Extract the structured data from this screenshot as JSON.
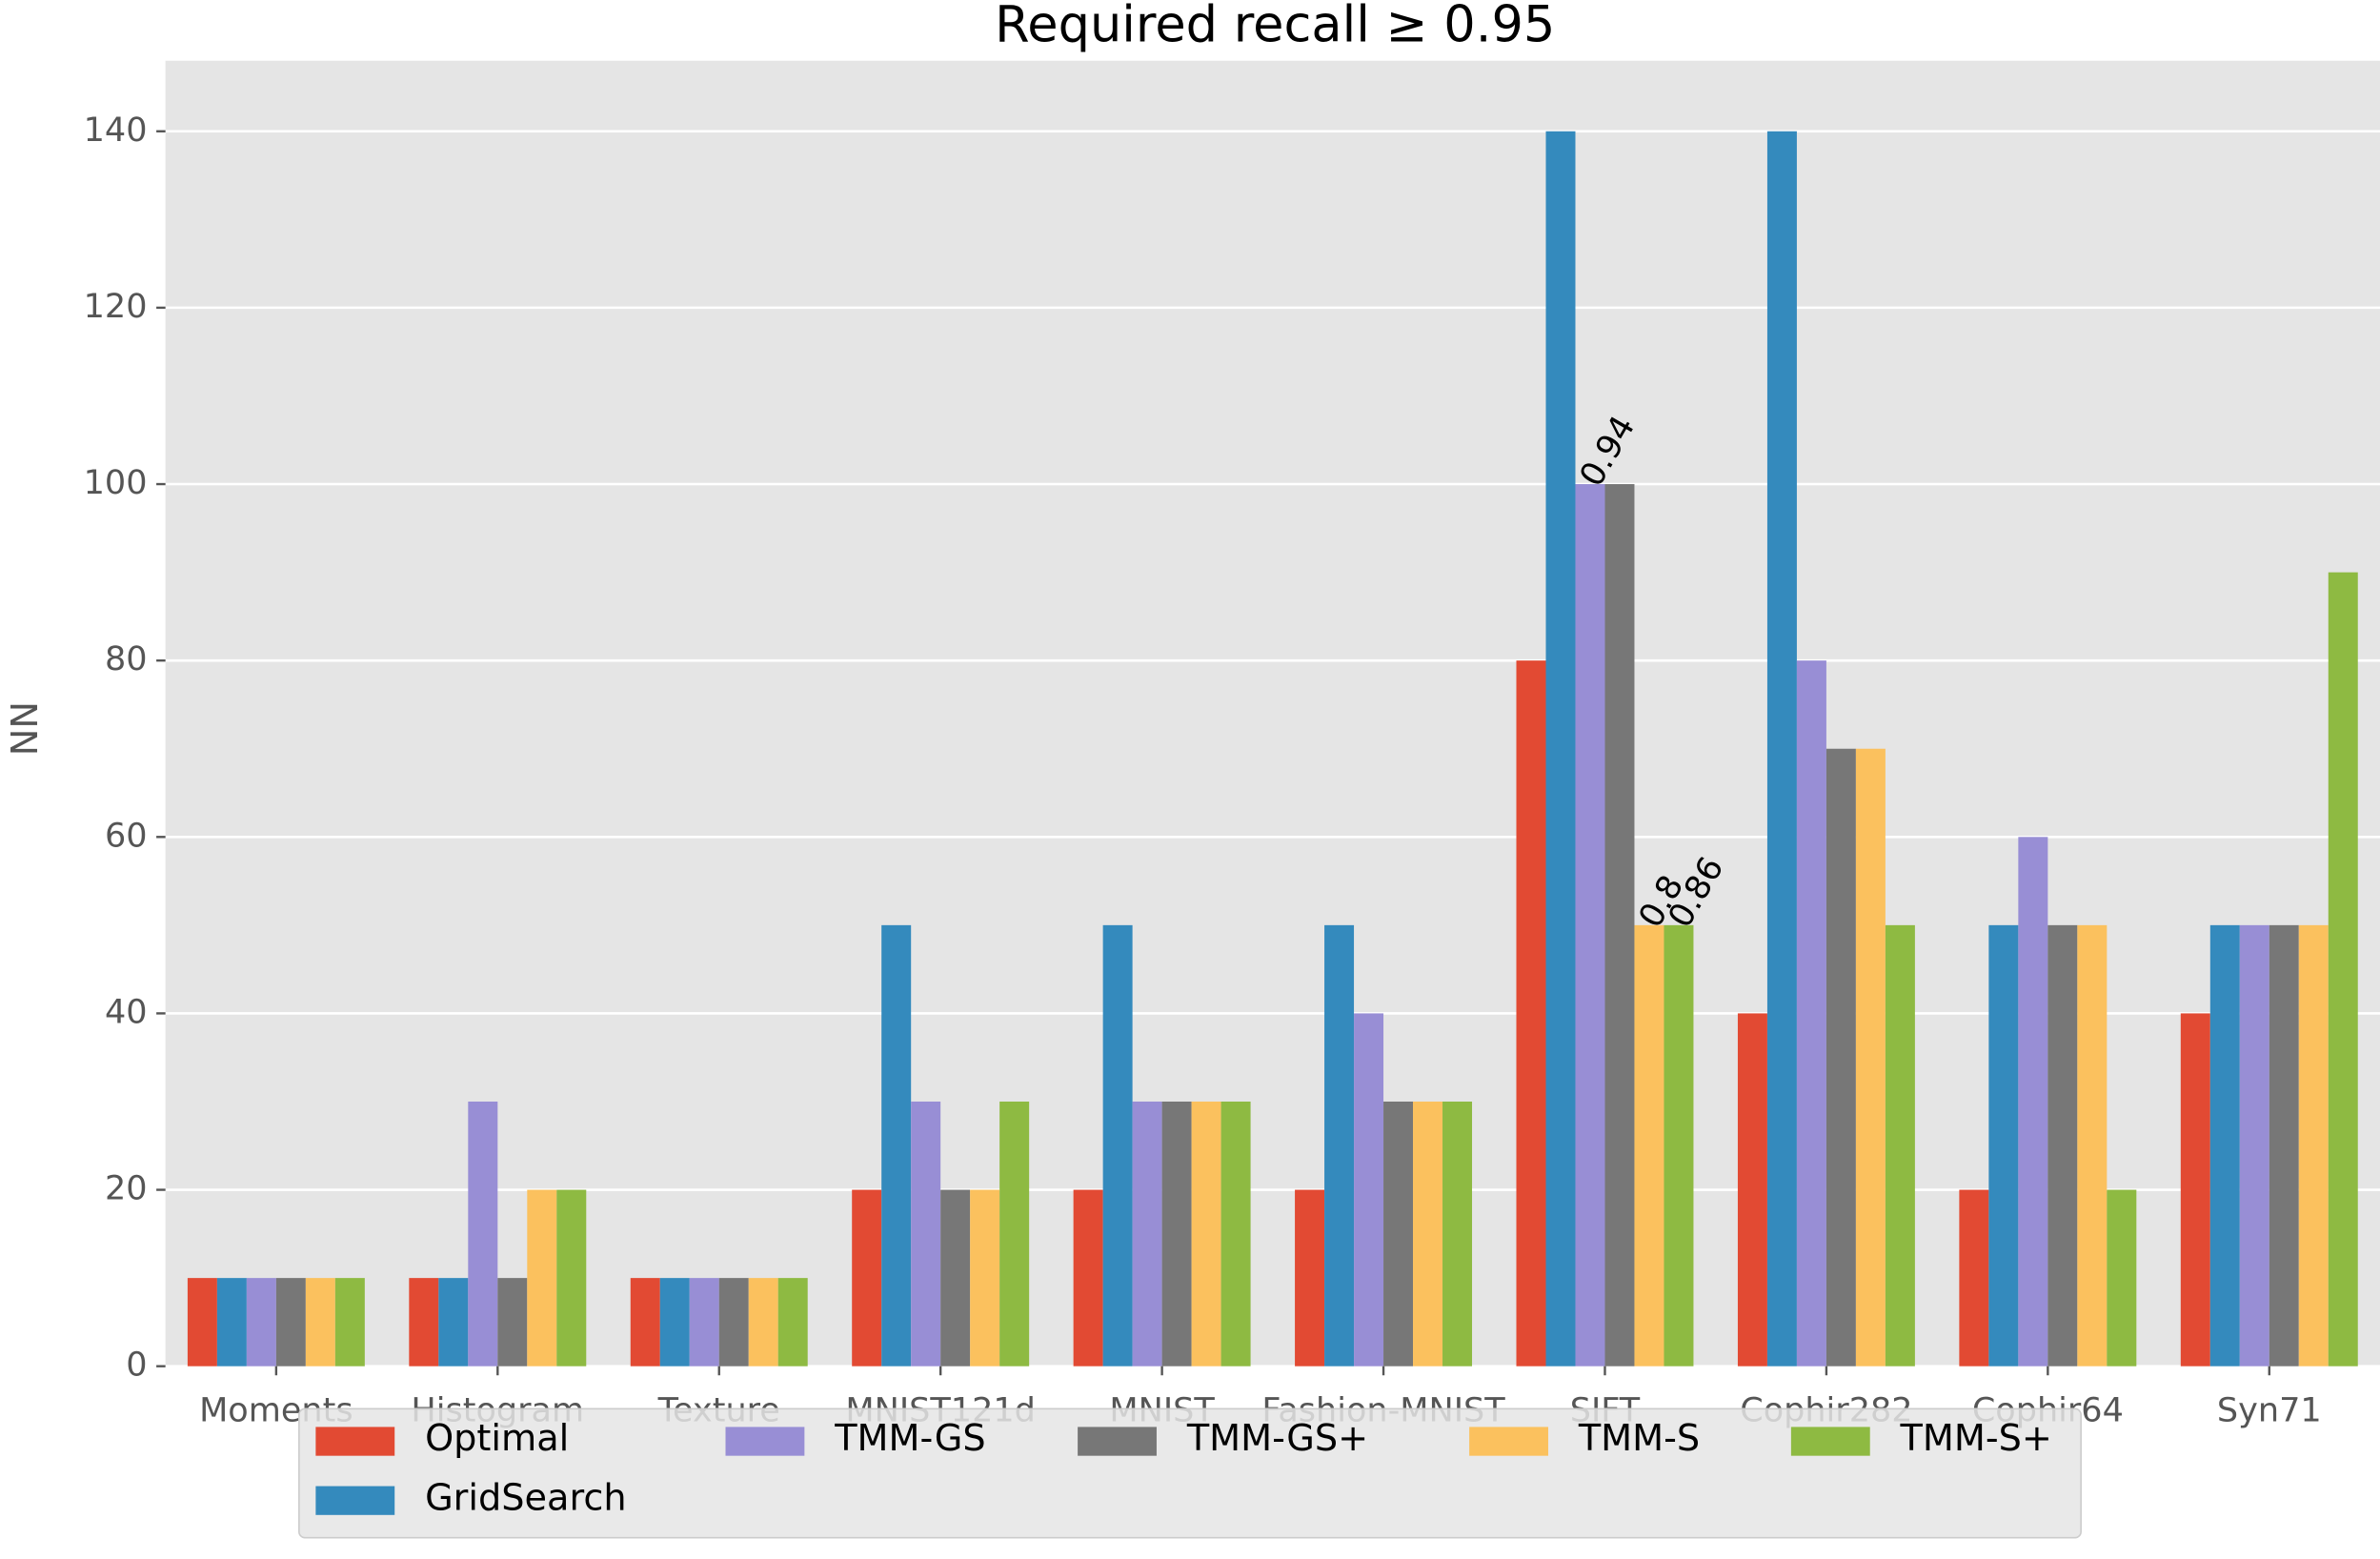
{
  "chart_data": {
    "type": "bar",
    "title": "Required recall ≥ 0.95",
    "y_label": "NN",
    "categories": [
      "Moments",
      "Histogram",
      "Texture",
      "MNIST121d",
      "MNIST",
      "Fashion-MNIST",
      "SIFT",
      "Cophir282",
      "Cophir64",
      "Syn71"
    ],
    "series": [
      {
        "name": "Optimal",
        "color": "#E24A33",
        "values": [
          10,
          10,
          10,
          20,
          20,
          20,
          80,
          40,
          20,
          40
        ]
      },
      {
        "name": "GridSearch",
        "color": "#348ABD",
        "values": [
          10,
          10,
          10,
          50,
          50,
          50,
          140,
          140,
          50,
          50
        ]
      },
      {
        "name": "TMM-GS",
        "color": "#988ED5",
        "values": [
          10,
          30,
          10,
          30,
          30,
          40,
          100,
          80,
          60,
          50
        ]
      },
      {
        "name": "TMM-GS+",
        "color": "#777777",
        "values": [
          10,
          10,
          10,
          20,
          30,
          30,
          100,
          70,
          50,
          50
        ]
      },
      {
        "name": "TMM-S",
        "color": "#FBC15E",
        "values": [
          10,
          20,
          10,
          20,
          30,
          30,
          50,
          70,
          50,
          50
        ]
      },
      {
        "name": "TMM-S+",
        "color": "#8EBA42",
        "values": [
          10,
          20,
          10,
          30,
          30,
          30,
          50,
          50,
          20,
          90
        ]
      }
    ],
    "annotations": [
      {
        "text": "0.94",
        "category": "SIFT",
        "series": "TMM-GS"
      },
      {
        "text": "0.8",
        "category": "SIFT",
        "series": "TMM-S"
      },
      {
        "text": "0.86",
        "category": "SIFT",
        "series": "TMM-S+"
      }
    ],
    "ylim": [
      0,
      148
    ],
    "yticks": [
      0,
      20,
      40,
      60,
      80,
      100,
      120,
      140
    ],
    "grid": true,
    "legend": "lower center"
  }
}
